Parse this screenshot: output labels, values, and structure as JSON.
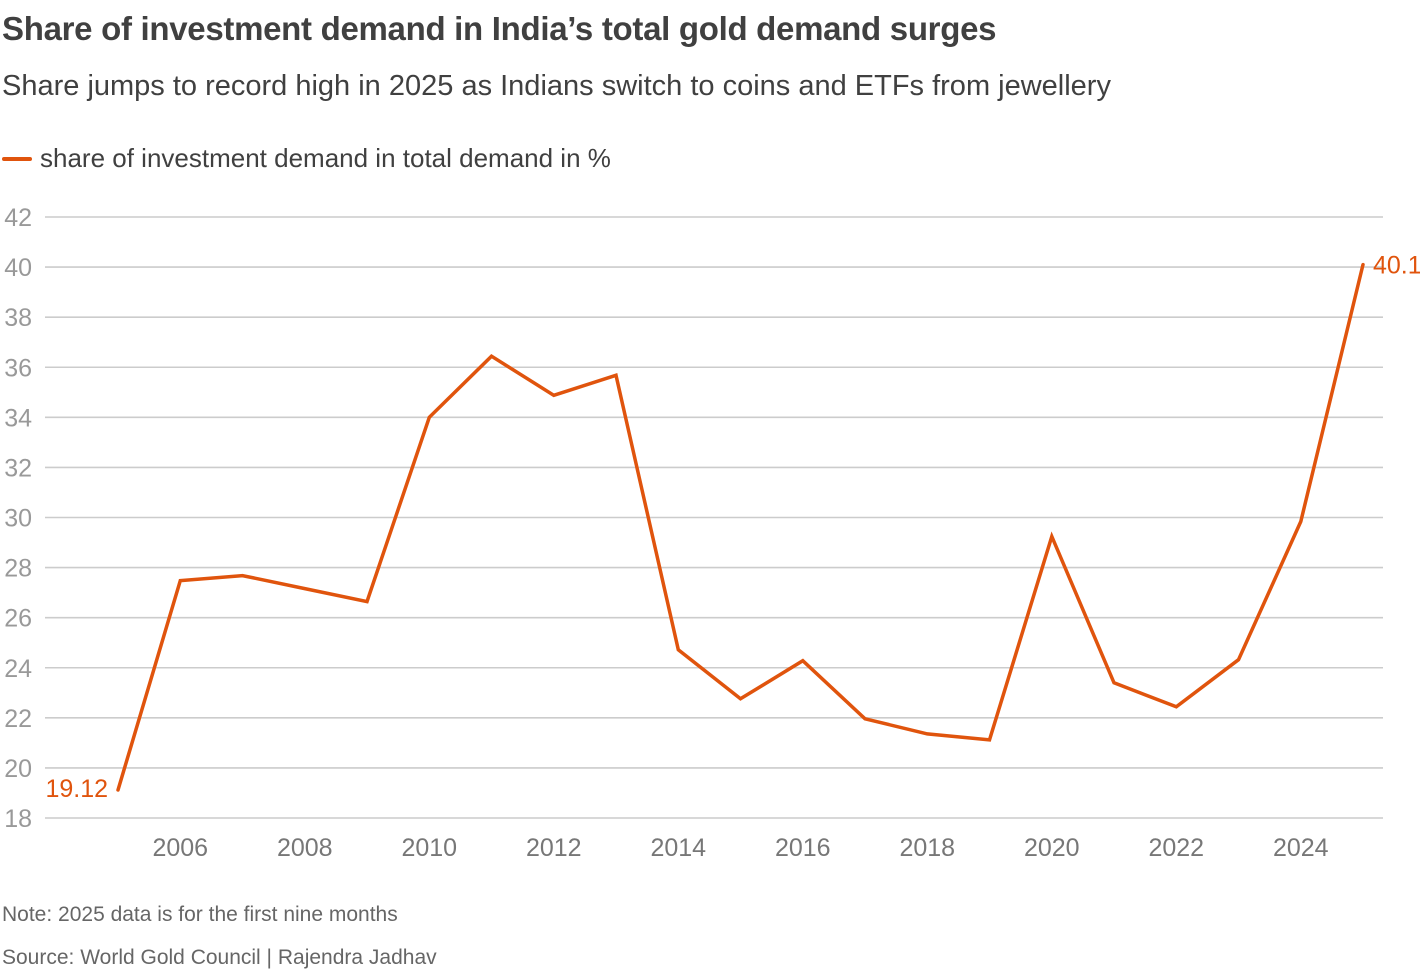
{
  "header": {
    "title": "Share of investment demand in India’s total gold demand surges",
    "subtitle": "Share jumps to record high in 2025 as Indians switch to coins and ETFs from jewellery"
  },
  "legend": {
    "label": "share of investment demand in total demand in %",
    "color": "#e0540d"
  },
  "footer": {
    "note": "Note: 2025 data is for the first nine months",
    "source": "Source: World Gold Council | Rajendra Jadhav"
  },
  "colors": {
    "line": "#e0540d",
    "grid": "#cccccc",
    "tick_label": "#999999",
    "x_tick_label": "#777777"
  },
  "chart_data": {
    "type": "line",
    "title": "Share of investment demand in India’s total gold demand surges",
    "subtitle": "Share jumps to record high in 2025 as Indians switch to coins and ETFs from jewellery",
    "xlabel": "",
    "ylabel": "",
    "x": [
      2005,
      2006,
      2007,
      2008,
      2009,
      2010,
      2011,
      2012,
      2013,
      2014,
      2015,
      2016,
      2017,
      2018,
      2019,
      2020,
      2021,
      2022,
      2023,
      2024,
      2025
    ],
    "series": [
      {
        "name": "share of investment demand in total demand in %",
        "values": [
          19.12,
          27.48,
          27.68,
          27.16,
          26.64,
          34.0,
          36.44,
          34.88,
          35.68,
          24.72,
          22.76,
          24.28,
          21.96,
          21.36,
          21.12,
          29.24,
          23.4,
          22.44,
          24.32,
          29.84,
          40.1
        ]
      }
    ],
    "xlim": [
      2004.5,
      2025.3
    ],
    "ylim": [
      18,
      42
    ],
    "x_ticks": [
      2006,
      2008,
      2010,
      2012,
      2014,
      2016,
      2018,
      2020,
      2022,
      2024
    ],
    "y_ticks": [
      18,
      20,
      22,
      24,
      26,
      28,
      30,
      32,
      34,
      36,
      38,
      40,
      42
    ],
    "grid": "horizontal",
    "legend_position": "top-left",
    "annotations": [
      {
        "x": 2005,
        "y": 19.12,
        "text": "19.12",
        "side": "left"
      },
      {
        "x": 2025,
        "y": 40.1,
        "text": "40.1",
        "side": "right"
      }
    ]
  }
}
